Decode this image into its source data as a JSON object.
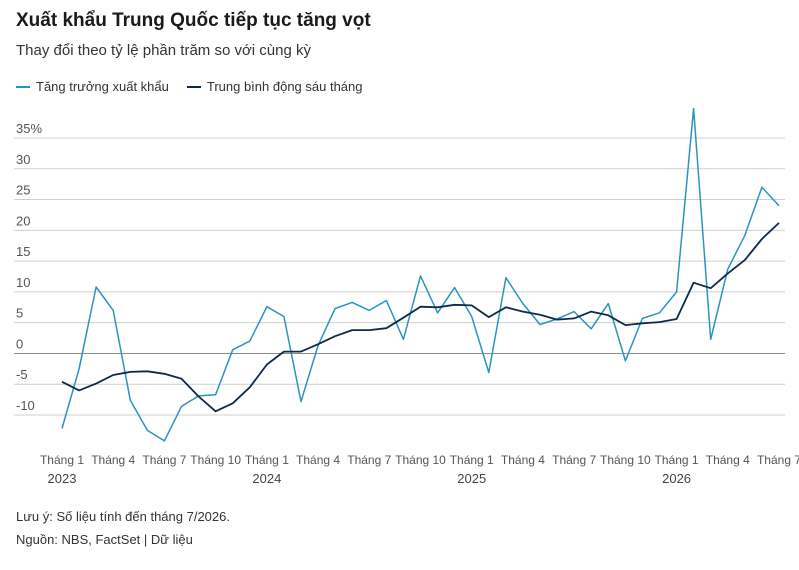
{
  "header": {
    "title": "Xuất khẩu Trung Quốc tiếp tục tăng vọt",
    "subtitle": "Thay đổi theo tỷ lệ phần trăm so với cùng kỳ"
  },
  "legend": [
    {
      "label": "Tăng trưởng xuất khẩu",
      "color": "#2b93c0"
    },
    {
      "label": "Trung bình động sáu tháng",
      "color": "#0d2a4a"
    }
  ],
  "footer": {
    "note": "Lưu ý: Số liệu tính đến tháng 7/2026.",
    "source": "Nguồn: NBS, FactSet | Dữ liệu"
  },
  "chart_data": {
    "type": "line",
    "title": "Xuất khẩu Trung Quốc tiếp tục tăng vọt",
    "subtitle": "Thay đổi theo tỷ lệ phần trăm so với cùng kỳ",
    "xlabel": "",
    "ylabel": "",
    "ylim": [
      -10,
      35
    ],
    "yticks": [
      -10,
      -5,
      0,
      5,
      10,
      15,
      20,
      25,
      30,
      35
    ],
    "ytick_labels": [
      "-10",
      "-5",
      "0",
      "5",
      "10",
      "15",
      "20",
      "25",
      "30",
      "35%"
    ],
    "grid": true,
    "legend_position": "top-left",
    "x": [
      "2023-01",
      "2023-02",
      "2023-03",
      "2023-04",
      "2023-05",
      "2023-06",
      "2023-07",
      "2023-08",
      "2023-09",
      "2023-10",
      "2023-11",
      "2023-12",
      "2024-01",
      "2024-02",
      "2024-03",
      "2024-04",
      "2024-05",
      "2024-06",
      "2024-07",
      "2024-08",
      "2024-09",
      "2024-10",
      "2024-11",
      "2024-12",
      "2025-01",
      "2025-02",
      "2025-03",
      "2025-04",
      "2025-05",
      "2025-06",
      "2025-07",
      "2025-08",
      "2025-09",
      "2025-10",
      "2025-11",
      "2025-12",
      "2026-01",
      "2026-02",
      "2026-03",
      "2026-04",
      "2026-05",
      "2026-06",
      "2026-07"
    ],
    "xtick_labels": [
      {
        "index": 0,
        "label": "Tháng 1",
        "year": "2023"
      },
      {
        "index": 3,
        "label": "Tháng 4"
      },
      {
        "index": 6,
        "label": "Tháng 7"
      },
      {
        "index": 9,
        "label": "Tháng 10"
      },
      {
        "index": 12,
        "label": "Tháng 1",
        "year": "2024"
      },
      {
        "index": 15,
        "label": "Tháng 4"
      },
      {
        "index": 18,
        "label": "Tháng 7"
      },
      {
        "index": 21,
        "label": "Tháng 10"
      },
      {
        "index": 24,
        "label": "Tháng 1",
        "year": "2025"
      },
      {
        "index": 27,
        "label": "Tháng 4"
      },
      {
        "index": 30,
        "label": "Tháng 7"
      },
      {
        "index": 33,
        "label": "Tháng 10"
      },
      {
        "index": 36,
        "label": "Tháng 1",
        "year": "2026"
      },
      {
        "index": 39,
        "label": "Tháng 4"
      },
      {
        "index": 42,
        "label": "Tháng 7"
      }
    ],
    "series": [
      {
        "name": "Tăng trưởng xuất khẩu",
        "color": "#2b93c0",
        "values": [
          -12.2,
          -2.5,
          10.8,
          7.0,
          -7.6,
          -12.5,
          -14.2,
          -8.6,
          -6.9,
          -6.7,
          0.6,
          2.0,
          7.6,
          6.0,
          -7.8,
          1.3,
          7.3,
          8.3,
          7.0,
          8.6,
          2.3,
          12.6,
          6.6,
          10.7,
          6.0,
          -3.1,
          12.3,
          8.1,
          4.7,
          5.6,
          6.8,
          4.0,
          8.1,
          -1.2,
          5.7,
          6.6,
          10.0,
          39.8,
          2.3,
          13.7,
          19.2,
          27.0,
          24.0
        ]
      },
      {
        "name": "Trung bình động sáu tháng",
        "color": "#0d2a4a",
        "values": [
          -4.6,
          -6.0,
          -4.9,
          -3.5,
          -3.0,
          -2.9,
          -3.3,
          -4.1,
          -7.0,
          -9.4,
          -8.1,
          -5.5,
          -1.8,
          0.3,
          0.3,
          1.5,
          2.8,
          3.8,
          3.8,
          4.1,
          5.8,
          7.6,
          7.5,
          7.9,
          7.8,
          5.9,
          7.5,
          6.8,
          6.3,
          5.5,
          5.7,
          6.8,
          6.2,
          4.6,
          4.9,
          5.1,
          5.6,
          11.5,
          10.6,
          13.0,
          15.2,
          18.6,
          21.2
        ]
      }
    ]
  }
}
